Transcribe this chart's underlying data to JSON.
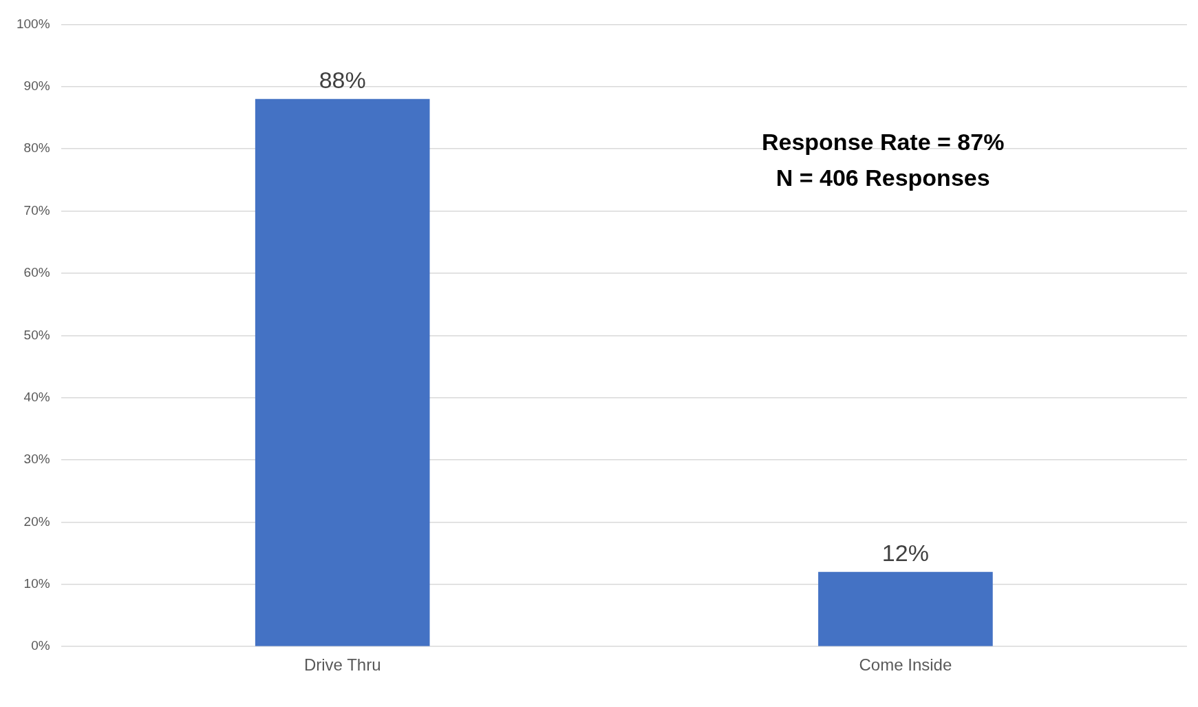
{
  "chart_data": {
    "type": "bar",
    "categories": [
      "Drive Thru",
      "Come Inside"
    ],
    "values": [
      88,
      12
    ],
    "color": "#4472c4",
    "value_labels": [
      "88%",
      "12%"
    ],
    "ylim": [
      0,
      100
    ],
    "yticks": [
      {
        "value": 0,
        "label": "0%"
      },
      {
        "value": 10,
        "label": "10%"
      },
      {
        "value": 20,
        "label": "20%"
      },
      {
        "value": 30,
        "label": "30%"
      },
      {
        "value": 40,
        "label": "40%"
      },
      {
        "value": 50,
        "label": "50%"
      },
      {
        "value": 60,
        "label": "60%"
      },
      {
        "value": 70,
        "label": "70%"
      },
      {
        "value": 80,
        "label": "80%"
      },
      {
        "value": 90,
        "label": "90%"
      },
      {
        "value": 100,
        "label": "100%"
      }
    ],
    "grid": "y",
    "legend": false,
    "annotations": [
      "Response Rate = 87%",
      "N = 406 Responses"
    ]
  }
}
